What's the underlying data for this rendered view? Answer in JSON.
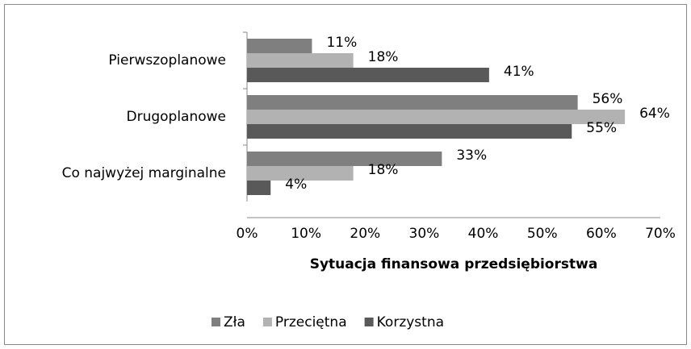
{
  "chart_data": {
    "type": "bar",
    "orientation": "horizontal",
    "xlabel": "Sytuacja finansowa przedsiębiorstwa",
    "categories": [
      "Pierwszoplanowe",
      "Drugoplanowe",
      "Co najwyżej marginalne"
    ],
    "series": [
      {
        "name": "Zła",
        "color": "#7f7f7f",
        "values": [
          11,
          56,
          33
        ],
        "value_labels": [
          "11%",
          "56%",
          "33%"
        ]
      },
      {
        "name": "Przeciętna",
        "color": "#b2b2b2",
        "values": [
          18,
          64,
          18
        ],
        "value_labels": [
          "18%",
          "64%",
          "18%"
        ]
      },
      {
        "name": "Korzystna",
        "color": "#595959",
        "values": [
          41,
          55,
          4
        ],
        "value_labels": [
          "41%",
          "55%",
          "4%"
        ]
      }
    ],
    "xlim": [
      0,
      70
    ],
    "xticks": [
      {
        "value": 0,
        "label": "0%"
      },
      {
        "value": 10,
        "label": "10%"
      },
      {
        "value": 20,
        "label": "20%"
      },
      {
        "value": 30,
        "label": "30%"
      },
      {
        "value": 40,
        "label": "40%"
      },
      {
        "value": 50,
        "label": "50%"
      },
      {
        "value": 60,
        "label": "60%"
      },
      {
        "value": 70,
        "label": "70%"
      }
    ],
    "grid": false,
    "legend": "bottom"
  }
}
